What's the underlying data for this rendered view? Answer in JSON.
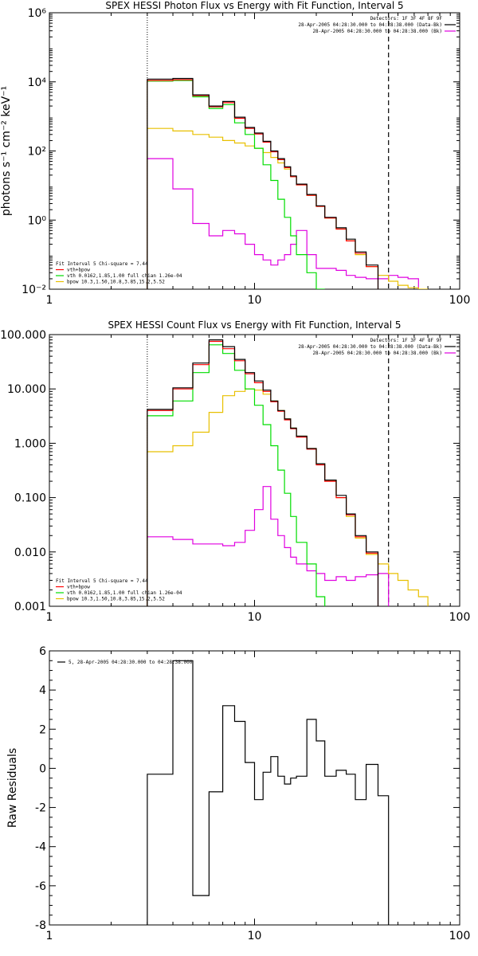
{
  "colors": {
    "total": "#000000",
    "model": "#ff0000",
    "vth": "#00dd00",
    "bpow": "#e8c000",
    "bkg": "#e000e0"
  },
  "chart_data": [
    {
      "type": "line",
      "title": "SPEX HESSI Photon Flux vs Energy with Fit Function, Interval 5",
      "xlabel": "",
      "ylabel": "photons s⁻¹ cm⁻² keV⁻¹",
      "xscale": "log",
      "yscale": "log",
      "xlim": [
        1,
        100
      ],
      "ylim": [
        0.01,
        1000000
      ],
      "xticklabels": [
        "1",
        "10",
        "100"
      ],
      "yticklabels": [
        "10⁻²",
        "10⁰",
        "10²",
        "10⁴",
        "10⁶"
      ],
      "fit_range": [
        3,
        45
      ],
      "legend_top": [
        "Detectors: 1F 3F 4F 8F 9F",
        "28-Apr-2005 04:28:30.000 to 04:28:38.000 (Data-Bk)",
        "28-Apr-2005 04:28:30.000 to 04:28:38.000 (Bk)"
      ],
      "legend_bottom": [
        "Fit Interval 5   Chi-square = 7.44",
        "vth+bpow",
        "vth 0.0162,1.85,1.00  full chian 1.26e-04",
        "bpow 10.3,1.50,10.8,3.85,15.2,5.52"
      ],
      "edges": [
        3,
        4,
        5,
        6,
        7,
        8,
        9,
        10,
        11,
        12,
        13,
        14,
        15,
        16,
        18,
        20,
        22,
        25,
        28,
        31,
        35,
        40,
        45,
        50,
        56,
        63,
        70
      ],
      "series": [
        {
          "name": "28-Apr-2005 04:28:30.000 to 04:28:38.000 (Data-Bk)",
          "key": "total",
          "values": [
            12000,
            12500,
            4200,
            2000,
            2700,
            950,
            480,
            330,
            190,
            100,
            60,
            35,
            19,
            11,
            5.5,
            2.6,
            1.2,
            0.6,
            0.28,
            0.12,
            0.05
          ]
        },
        {
          "name": "vth+bpow",
          "key": "model",
          "values": [
            11000,
            11500,
            4000,
            1900,
            2500,
            880,
            450,
            310,
            180,
            95,
            56,
            33,
            18,
            10.5,
            5.2,
            2.5,
            1.15,
            0.55,
            0.25,
            0.11,
            0.045
          ]
        },
        {
          "name": "vth",
          "key": "vth",
          "values": [
            10500,
            11000,
            3700,
            1700,
            2200,
            650,
            300,
            120,
            40,
            14,
            4,
            1.2,
            0.35,
            0.1,
            0.03,
            0.01
          ]
        },
        {
          "name": "bpow",
          "key": "bpow",
          "values": [
            450,
            380,
            300,
            250,
            200,
            170,
            140,
            120,
            90,
            65,
            45,
            30,
            18,
            10.5,
            5.2,
            2.5,
            1.15,
            0.55,
            0.25,
            0.1,
            0.045,
            0.025,
            0.017,
            0.013,
            0.011,
            0.009
          ]
        },
        {
          "name": "28-Apr-2005 04:28:30.000 to 04:28:38.000 (Bk)",
          "key": "bkg",
          "values": [
            60,
            8,
            0.8,
            0.35,
            0.5,
            0.4,
            0.2,
            0.1,
            0.07,
            0.05,
            0.07,
            0.1,
            0.2,
            0.5,
            0.1,
            0.04,
            0.04,
            0.035,
            0.025,
            0.022,
            0.02,
            0.02,
            0.025,
            0.022,
            0.02
          ]
        }
      ]
    },
    {
      "type": "line",
      "title": "SPEX HESSI Count Flux vs Energy with Fit Function, Interval 5",
      "xlabel": "",
      "ylabel": "",
      "xscale": "log",
      "yscale": "log",
      "xlim": [
        1,
        100
      ],
      "ylim": [
        0.001,
        100
      ],
      "xticklabels": [
        "1",
        "10",
        "100"
      ],
      "yticklabels": [
        "0.001",
        "0.010",
        "0.100",
        "1.000",
        "10.000",
        "100.000"
      ],
      "fit_range": [
        3,
        45
      ],
      "legend_top": [
        "Detectors: 1F 3F 4F 8F 9F",
        "28-Apr-2005 04:28:30.000 to 04:28:38.000 (Data-Bk)",
        "28-Apr-2005 04:28:30.000 to 04:28:38.000 (Bk)"
      ],
      "legend_bottom": [
        "Fit Interval 5   Chi-square = 7.44",
        "vth+bpow",
        "vth 0.0162,1.85,1.00  full chian 1.26e-04",
        "bpow 10.3,1.50,10.8,3.85,15.2,5.52"
      ],
      "edges": [
        3,
        4,
        5,
        6,
        7,
        8,
        9,
        10,
        11,
        12,
        13,
        14,
        15,
        16,
        18,
        20,
        22,
        25,
        28,
        31,
        35,
        40,
        45,
        50,
        56,
        63,
        70
      ],
      "series": [
        {
          "name": "28-Apr-2005 04:28:30.000 to 04:28:38.000 (Data-Bk)",
          "key": "total",
          "values": [
            4.2,
            10.5,
            30,
            80,
            60,
            35,
            20,
            14,
            9.5,
            6,
            4,
            2.8,
            1.9,
            1.35,
            0.8,
            0.42,
            0.21,
            0.11,
            0.05,
            0.02,
            0.01
          ]
        },
        {
          "name": "vth+bpow",
          "key": "model",
          "values": [
            4,
            10,
            28,
            75,
            55,
            33,
            19,
            13,
            9,
            5.8,
            3.9,
            2.7,
            1.85,
            1.3,
            0.78,
            0.4,
            0.2,
            0.1,
            0.048,
            0.019,
            0.0095
          ]
        },
        {
          "name": "vth",
          "key": "vth",
          "values": [
            3.2,
            6,
            20,
            65,
            45,
            22,
            10,
            5,
            2.2,
            0.9,
            0.32,
            0.12,
            0.045,
            0.015,
            0.006,
            0.0015
          ]
        },
        {
          "name": "bpow",
          "key": "bpow",
          "values": [
            0.7,
            0.9,
            1.6,
            3.7,
            7.5,
            9,
            10,
            9.5,
            8,
            6,
            4,
            2.8,
            1.9,
            1.35,
            0.8,
            0.42,
            0.21,
            0.1,
            0.045,
            0.018,
            0.009,
            0.006,
            0.004,
            0.003,
            0.002,
            0.0015
          ]
        },
        {
          "name": "28-Apr-2005 04:28:30.000 to 04:28:38.000 (Bk)",
          "key": "bkg",
          "values": [
            0.019,
            0.017,
            0.014,
            0.014,
            0.013,
            0.015,
            0.025,
            0.06,
            0.16,
            0.04,
            0.02,
            0.012,
            0.008,
            0.006,
            0.0045,
            0.004,
            0.003,
            0.0035,
            0.003,
            0.0035,
            0.0038,
            0.004
          ]
        }
      ]
    },
    {
      "type": "line",
      "title": "",
      "xlabel": "",
      "ylabel": "Raw Residuals",
      "xscale": "log",
      "yscale": "linear",
      "xlim": [
        1,
        100
      ],
      "ylim": [
        -8,
        6
      ],
      "xticklabels": [
        "1",
        "10",
        "100"
      ],
      "yticklabels": [
        "-8",
        "-6",
        "-4",
        "-2",
        "0",
        "2",
        "4",
        "6"
      ],
      "fit_range": [
        3,
        45
      ],
      "legend_top": [
        "5, 28-Apr-2005 04:28:30.000 to 04:28:38.000"
      ],
      "edges": [
        3,
        4,
        4.5,
        5,
        6,
        7,
        7.5,
        8,
        8.5,
        9,
        10,
        11,
        12,
        13,
        14,
        15,
        16,
        18,
        20,
        22,
        25,
        28,
        31,
        35,
        40,
        45
      ],
      "series": [
        {
          "name": "5, 28-Apr-2005 04:28:30.000 to 04:28:38.000",
          "key": "total",
          "values": [
            -0.3,
            5.5,
            5.5,
            -6.5,
            -1.2,
            3.2,
            3.2,
            2.4,
            2.4,
            0.3,
            -1.6,
            -0.2,
            0.6,
            -0.4,
            -0.8,
            -0.5,
            -0.4,
            2.5,
            1.4,
            -0.4,
            -0.1,
            -0.3,
            -1.6,
            0.2,
            -1.4
          ]
        }
      ]
    }
  ]
}
